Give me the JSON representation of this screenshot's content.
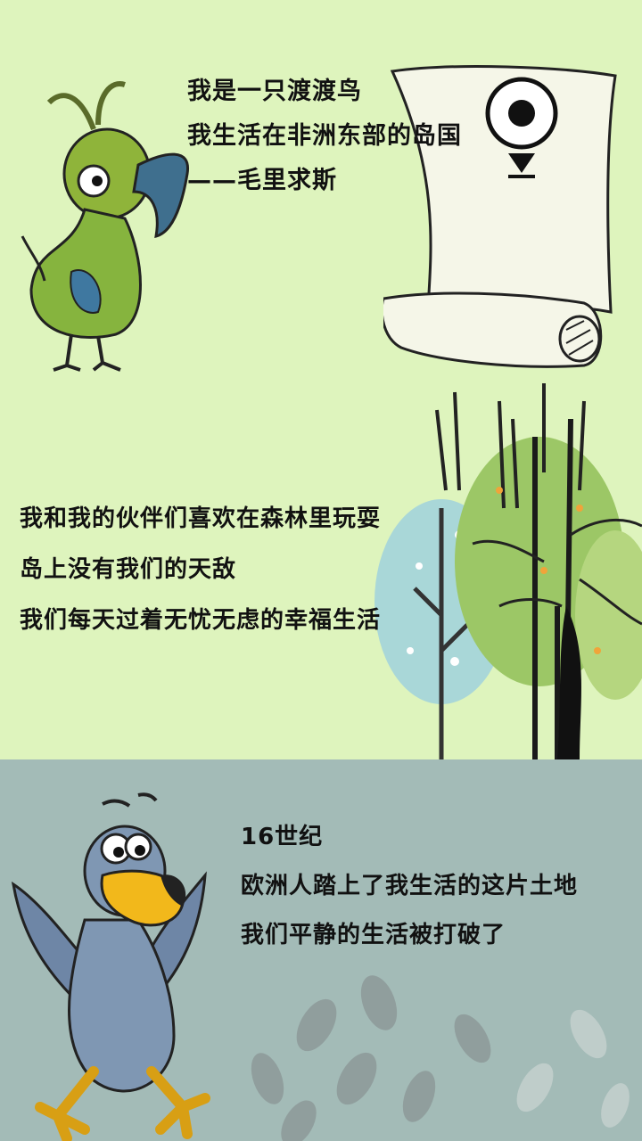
{
  "panel1": {
    "lines": [
      "我是一只渡渡鸟",
      "我生活在非洲东部的岛国",
      "——毛里求斯"
    ],
    "illustrations": [
      "dodo-bird-green",
      "scroll-map",
      "location-pin-icon"
    ]
  },
  "panel2": {
    "lines": [
      "我和我的伙伴们喜欢在森林里玩耍",
      "岛上没有我们的天敌",
      "我们每天过着无忧无虑的幸福生活"
    ],
    "illustrations": [
      "forest-trees"
    ]
  },
  "panel3": {
    "lines": [
      "16世纪",
      "欧洲人踏上了我生活的这片土地",
      "我们平静的生活被打破了"
    ],
    "illustrations": [
      "dodo-bird-blue-running",
      "footprints"
    ]
  },
  "colors": {
    "light_green_bg": "#def4bd",
    "gray_teal_bg": "#a3bbb7",
    "text": "#111111"
  }
}
